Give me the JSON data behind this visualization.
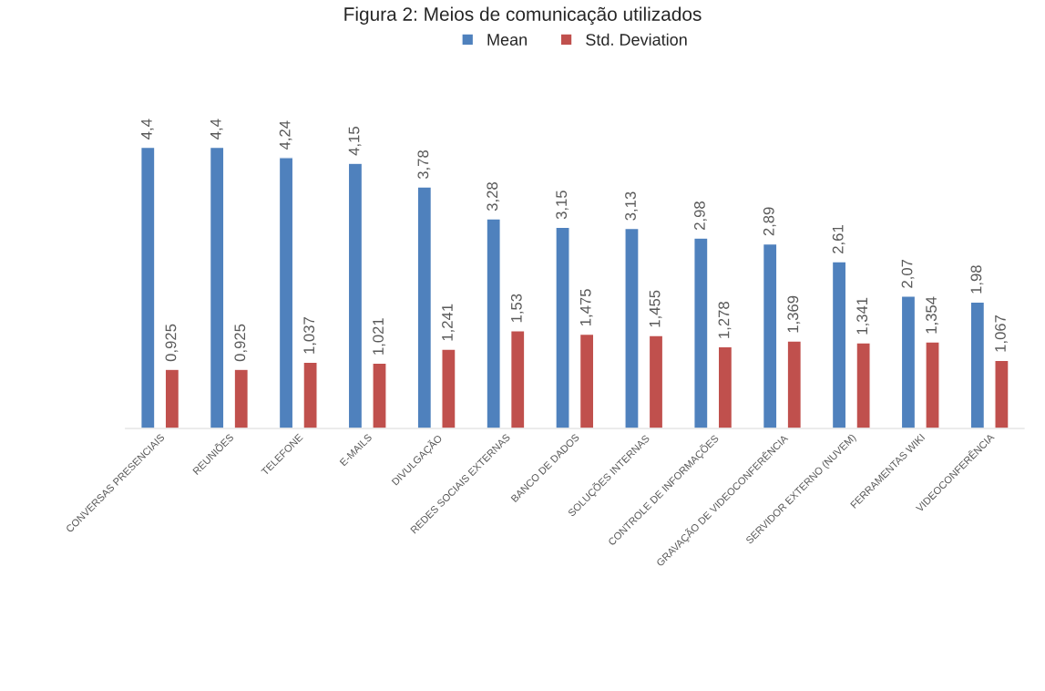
{
  "chart_data": {
    "type": "bar",
    "title": "Figura 2: Meios de comunicação utilizados",
    "categories": [
      "CONVERSAS PRESENCIAIS",
      "REUNIÕES",
      "TELEFONE",
      "E-MAILS",
      "DIVULGAÇÃO",
      "REDES SOCIAIS EXTERNAS",
      "BANCO DE DADOS",
      "SOLUÇÕES INTERNAS",
      "CONTROLE DE INFORMAÇÕES",
      "GRAVAÇÃO DE VIDEOCONFERÊNCIA",
      "SERVIDOR EXTERNO (NUVEM)",
      "FERRAMENTAS WIKI",
      "VIDEOCONFERÊNCIA"
    ],
    "series": [
      {
        "name": "Mean",
        "color": "#4f81bd",
        "values": [
          4.4,
          4.4,
          4.24,
          4.15,
          3.78,
          3.28,
          3.15,
          3.13,
          2.98,
          2.89,
          2.61,
          2.07,
          1.98
        ],
        "value_labels": [
          "4,4",
          "4,4",
          "4,24",
          "4,15",
          "3,78",
          "3,28",
          "3,15",
          "3,13",
          "2,98",
          "2,89",
          "2,61",
          "2,07",
          "1,98"
        ]
      },
      {
        "name": "Std. Deviation",
        "color": "#c0504d",
        "values": [
          0.925,
          0.925,
          1.037,
          1.021,
          1.241,
          1.53,
          1.475,
          1.455,
          1.278,
          1.369,
          1.341,
          1.354,
          1.067
        ],
        "value_labels": [
          "0,925",
          "0,925",
          "1,037",
          "1,021",
          "1,241",
          "1,53",
          "1,475",
          "1,455",
          "1,278",
          "1,369",
          "1,341",
          "1,354",
          "1,067"
        ]
      }
    ],
    "tick_labels": "x",
    "legend": "top",
    "grid": false
  }
}
